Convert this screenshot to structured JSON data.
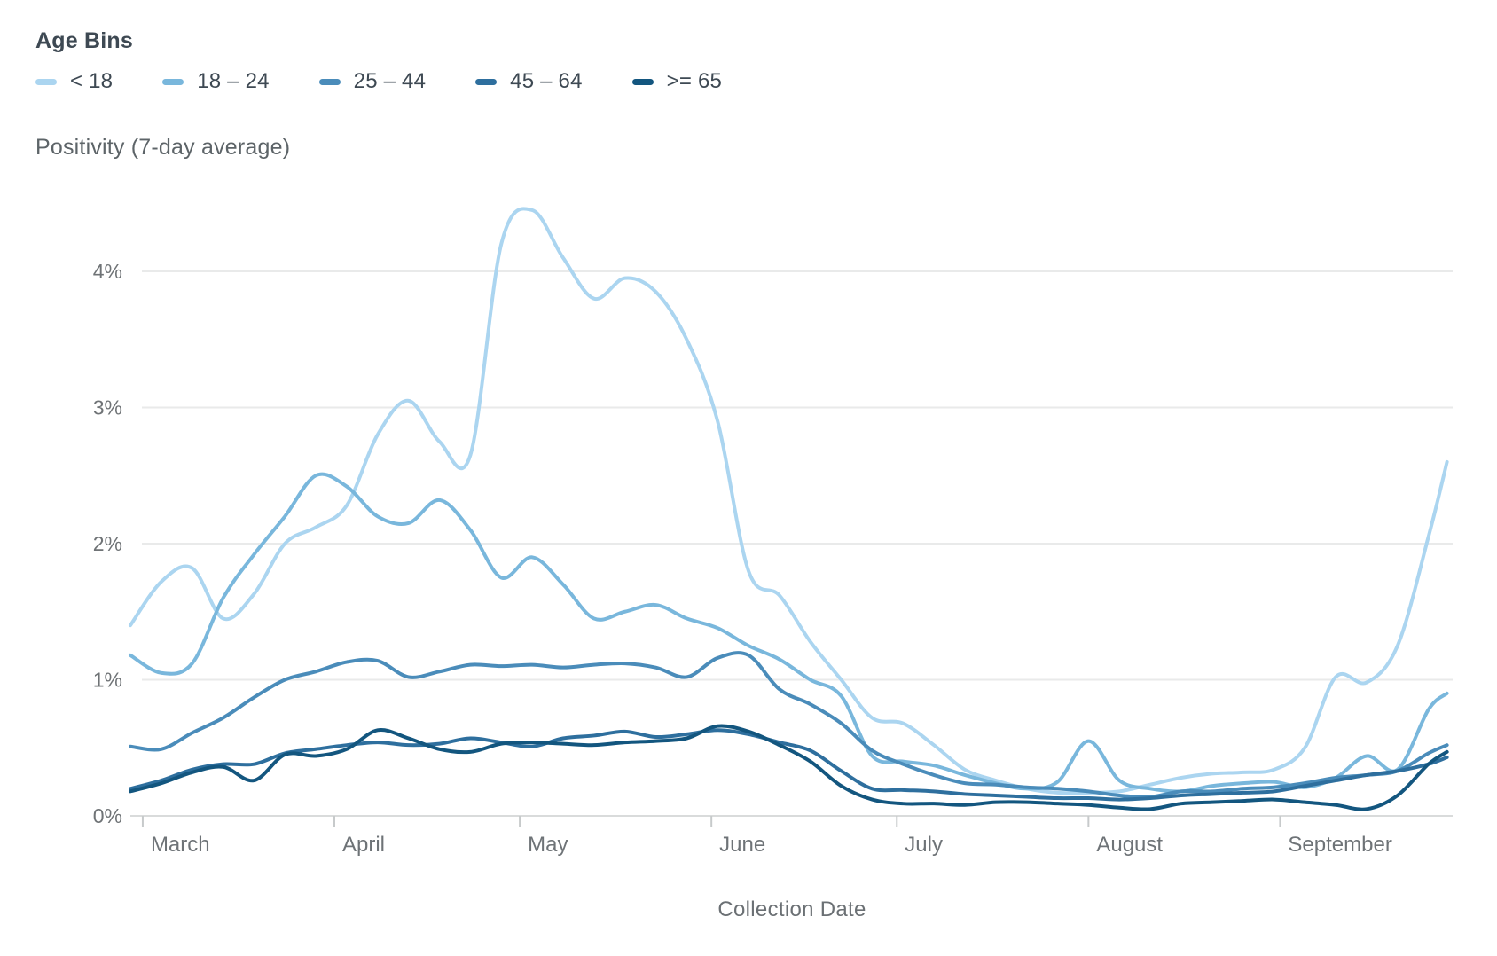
{
  "legend": {
    "title": "Age Bins",
    "items": [
      {
        "label": "< 18",
        "color": "#abd5f0"
      },
      {
        "label": "18 – 24",
        "color": "#79b7dc"
      },
      {
        "label": "25 – 44",
        "color": "#4a8cba"
      },
      {
        "label": "45 – 64",
        "color": "#2e6f9e"
      },
      {
        "label": ">= 65",
        "color": "#13567f"
      }
    ]
  },
  "chart": {
    "y_axis_title": "Positivity (7-day average)",
    "x_axis_title": "Collection Date"
  },
  "chart_data": {
    "type": "line",
    "title": "Positivity (7-day average)",
    "xlabel": "Collection Date",
    "ylabel": "Positivity (7-day average)",
    "unit": "percent",
    "grid": "horizontal",
    "legend_position": "top-left",
    "ylim": [
      0,
      4.6
    ],
    "y_ticks": [
      {
        "value": 4,
        "label": "4%"
      },
      {
        "value": 3,
        "label": "3%"
      },
      {
        "value": 2,
        "label": "2%"
      },
      {
        "value": 1,
        "label": "1%"
      },
      {
        "value": 0,
        "label": "0%"
      }
    ],
    "x_tick_labels": [
      "March",
      "April",
      "May",
      "June",
      "July",
      "August",
      "September"
    ],
    "x_tick_day_offsets": [
      2,
      33,
      63,
      94,
      124,
      155,
      186
    ],
    "x_range_days": 213,
    "sample_dates": [
      "Feb 28",
      "Mar 4",
      "Mar 9",
      "Mar 14",
      "Mar 19",
      "Mar 24",
      "Mar 29",
      "Apr 3",
      "Apr 8",
      "Apr 13",
      "Apr 18",
      "Apr 23",
      "Apr 28",
      "May 3",
      "May 8",
      "May 13",
      "May 18",
      "May 23",
      "May 28",
      "Jun 2",
      "Jun 7",
      "Jun 12",
      "Jun 17",
      "Jun 22",
      "Jun 27",
      "Jul 2",
      "Jul 7",
      "Jul 12",
      "Jul 17",
      "Jul 22",
      "Jul 27",
      "Aug 1",
      "Aug 6",
      "Aug 11",
      "Aug 16",
      "Aug 21",
      "Aug 26",
      "Aug 31",
      "Sep 5",
      "Sep 10",
      "Sep 15",
      "Sep 20",
      "Sep 25",
      "Sep 28"
    ],
    "sample_day_offsets": [
      0,
      5,
      10,
      15,
      20,
      25,
      30,
      35,
      40,
      45,
      50,
      55,
      60,
      65,
      70,
      75,
      80,
      85,
      90,
      95,
      100,
      105,
      110,
      115,
      120,
      125,
      130,
      135,
      140,
      145,
      150,
      155,
      160,
      165,
      170,
      175,
      180,
      185,
      190,
      195,
      200,
      205,
      210,
      213
    ],
    "series": [
      {
        "name": "< 18",
        "color": "#abd5f0",
        "values": [
          1.4,
          1.72,
          1.82,
          1.45,
          1.63,
          2.0,
          2.12,
          2.28,
          2.8,
          3.05,
          2.75,
          2.65,
          4.2,
          4.45,
          4.1,
          3.8,
          3.95,
          3.85,
          3.5,
          2.9,
          1.8,
          1.62,
          1.28,
          1.0,
          0.72,
          0.68,
          0.52,
          0.34,
          0.26,
          0.2,
          0.17,
          0.17,
          0.18,
          0.23,
          0.28,
          0.31,
          0.32,
          0.34,
          0.5,
          1.02,
          0.98,
          1.25,
          2.05,
          2.6
        ]
      },
      {
        "name": "18 – 24",
        "color": "#79b7dc",
        "values": [
          1.18,
          1.05,
          1.12,
          1.6,
          1.92,
          2.2,
          2.5,
          2.42,
          2.2,
          2.15,
          2.32,
          2.1,
          1.75,
          1.9,
          1.7,
          1.45,
          1.5,
          1.55,
          1.45,
          1.38,
          1.25,
          1.15,
          1.0,
          0.88,
          0.44,
          0.4,
          0.37,
          0.3,
          0.24,
          0.2,
          0.25,
          0.55,
          0.26,
          0.2,
          0.18,
          0.22,
          0.24,
          0.25,
          0.21,
          0.28,
          0.44,
          0.34,
          0.78,
          0.9
        ]
      },
      {
        "name": "25 – 44",
        "color": "#4a8cba",
        "values": [
          0.51,
          0.49,
          0.61,
          0.72,
          0.87,
          1.0,
          1.06,
          1.13,
          1.14,
          1.02,
          1.06,
          1.11,
          1.1,
          1.11,
          1.09,
          1.11,
          1.12,
          1.09,
          1.02,
          1.16,
          1.18,
          0.93,
          0.82,
          0.68,
          0.48,
          0.38,
          0.3,
          0.24,
          0.23,
          0.21,
          0.2,
          0.18,
          0.15,
          0.14,
          0.18,
          0.18,
          0.2,
          0.21,
          0.24,
          0.28,
          0.3,
          0.33,
          0.46,
          0.52
        ]
      },
      {
        "name": "45 – 64",
        "color": "#2e6f9e",
        "values": [
          0.2,
          0.26,
          0.34,
          0.38,
          0.38,
          0.46,
          0.49,
          0.52,
          0.54,
          0.52,
          0.53,
          0.57,
          0.54,
          0.51,
          0.57,
          0.59,
          0.62,
          0.58,
          0.6,
          0.63,
          0.6,
          0.54,
          0.48,
          0.33,
          0.2,
          0.19,
          0.18,
          0.16,
          0.15,
          0.14,
          0.13,
          0.13,
          0.12,
          0.13,
          0.15,
          0.16,
          0.17,
          0.18,
          0.22,
          0.26,
          0.3,
          0.33,
          0.38,
          0.43
        ]
      },
      {
        "name": ">= 65",
        "color": "#13567f",
        "values": [
          0.18,
          0.24,
          0.32,
          0.36,
          0.26,
          0.45,
          0.44,
          0.49,
          0.63,
          0.57,
          0.49,
          0.47,
          0.53,
          0.54,
          0.53,
          0.52,
          0.54,
          0.55,
          0.57,
          0.66,
          0.62,
          0.52,
          0.4,
          0.22,
          0.12,
          0.09,
          0.09,
          0.08,
          0.1,
          0.1,
          0.09,
          0.08,
          0.06,
          0.05,
          0.09,
          0.1,
          0.11,
          0.12,
          0.1,
          0.08,
          0.05,
          0.15,
          0.38,
          0.47
        ]
      }
    ]
  }
}
